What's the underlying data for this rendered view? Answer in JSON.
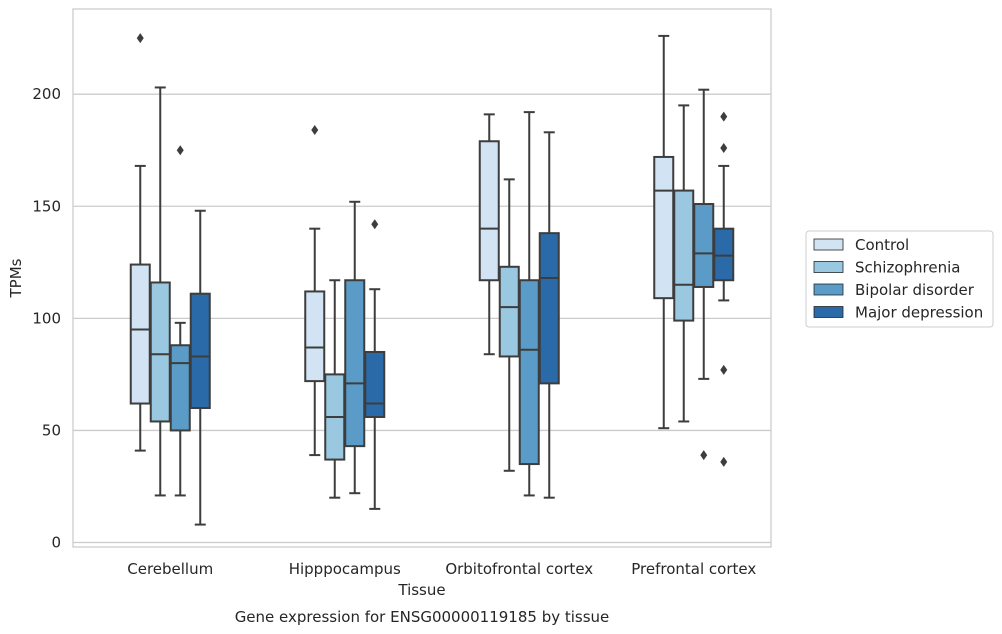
{
  "chart_data": {
    "type": "boxplot",
    "title": "Gene expression for ENSG00000119185 by tissue",
    "xlabel": "Tissue",
    "ylabel": "TPMs",
    "ylim": [
      -2,
      238
    ],
    "yticks": [
      0,
      50,
      100,
      150,
      200
    ],
    "grid": true,
    "legend_placement": "right",
    "categories": [
      "Cerebellum",
      "Hipppocampus",
      "Orbitofrontal cortex",
      "Prefrontal cortex"
    ],
    "series": [
      {
        "name": "Control",
        "color": "#d2e3f3",
        "boxes": [
          {
            "whisker_low": 41,
            "q1": 62,
            "median": 95,
            "q3": 124,
            "whisker_high": 168,
            "outliers": [
              225
            ]
          },
          {
            "whisker_low": 39,
            "q1": 72,
            "median": 87,
            "q3": 112,
            "whisker_high": 140,
            "outliers": [
              184
            ]
          },
          {
            "whisker_low": 84,
            "q1": 117,
            "median": 140,
            "q3": 179,
            "whisker_high": 191,
            "outliers": []
          },
          {
            "whisker_low": 51,
            "q1": 109,
            "median": 157,
            "q3": 172,
            "whisker_high": 226,
            "outliers": []
          }
        ]
      },
      {
        "name": "Schizophrenia",
        "color": "#9ac8e0",
        "boxes": [
          {
            "whisker_low": 21,
            "q1": 54,
            "median": 84,
            "q3": 116,
            "whisker_high": 203,
            "outliers": []
          },
          {
            "whisker_low": 20,
            "q1": 37,
            "median": 56,
            "q3": 75,
            "whisker_high": 117,
            "outliers": []
          },
          {
            "whisker_low": 32,
            "q1": 83,
            "median": 105,
            "q3": 123,
            "whisker_high": 162,
            "outliers": []
          },
          {
            "whisker_low": 54,
            "q1": 99,
            "median": 115,
            "q3": 157,
            "whisker_high": 195,
            "outliers": []
          }
        ]
      },
      {
        "name": "Bipolar disorder",
        "color": "#5a9cc7",
        "boxes": [
          {
            "whisker_low": 21,
            "q1": 50,
            "median": 80,
            "q3": 88,
            "whisker_high": 98,
            "outliers": [
              175
            ]
          },
          {
            "whisker_low": 22,
            "q1": 43,
            "median": 71,
            "q3": 117,
            "whisker_high": 152,
            "outliers": []
          },
          {
            "whisker_low": 21,
            "q1": 35,
            "median": 86,
            "q3": 117,
            "whisker_high": 192,
            "outliers": []
          },
          {
            "whisker_low": 73,
            "q1": 114,
            "median": 129,
            "q3": 151,
            "whisker_high": 202,
            "outliers": [
              39
            ]
          }
        ]
      },
      {
        "name": "Major depression",
        "color": "#2a6aa8",
        "boxes": [
          {
            "whisker_low": 8,
            "q1": 60,
            "median": 83,
            "q3": 111,
            "whisker_high": 148,
            "outliers": []
          },
          {
            "whisker_low": 15,
            "q1": 56,
            "median": 62,
            "q3": 85,
            "whisker_high": 113,
            "outliers": [
              142
            ]
          },
          {
            "whisker_low": 20,
            "q1": 71,
            "median": 118,
            "q3": 138,
            "whisker_high": 183,
            "outliers": []
          },
          {
            "whisker_low": 108,
            "q1": 117,
            "median": 128,
            "q3": 140,
            "whisker_high": 168,
            "outliers": [
              36,
              77,
              176,
              190
            ]
          }
        ]
      }
    ]
  }
}
